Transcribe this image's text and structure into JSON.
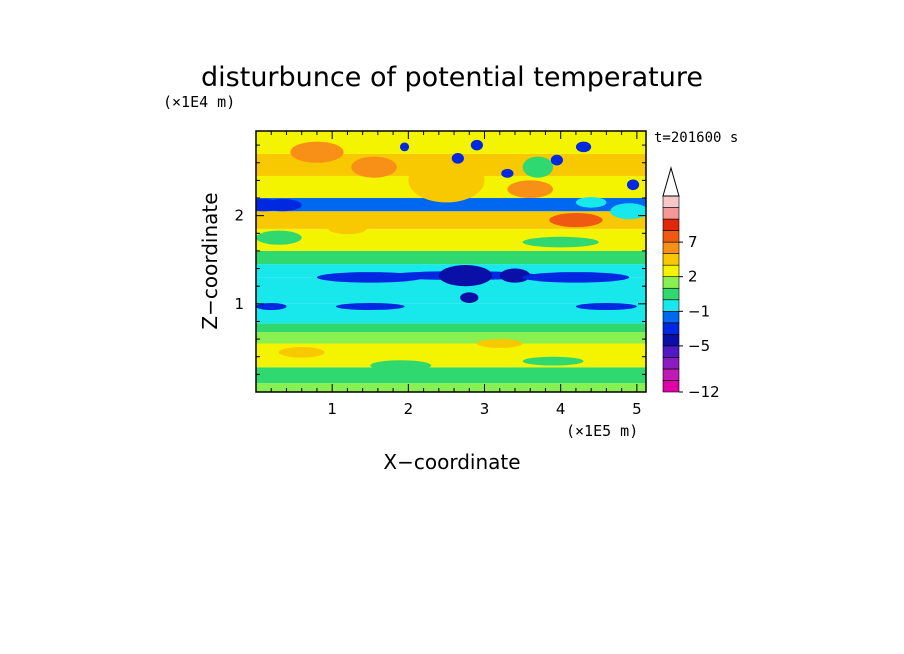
{
  "chart_data": {
    "type": "heatmap",
    "title": "disturbunce of potential temperature",
    "xlabel": "X−coordinate",
    "ylabel": "Z−coordinate",
    "x_unit": "(×1E5 m)",
    "y_unit": "(×1E4 m)",
    "time_label": "t=201600 s",
    "xlim": [
      0,
      5.12
    ],
    "ylim": [
      0,
      2.96
    ],
    "x_ticks": [
      "1",
      "2",
      "3",
      "4",
      "5"
    ],
    "y_ticks": [
      "1",
      "2"
    ],
    "grid": false,
    "legend": "right",
    "colorbar": {
      "tick_labels": [
        "−12",
        "−5",
        "−1",
        "2",
        "7"
      ],
      "tick_levels": [
        -12,
        -5,
        -1,
        2,
        7
      ],
      "levels": [
        -12,
        -10,
        -8,
        -6,
        -5,
        -4,
        -2,
        -1,
        0,
        1,
        2,
        4,
        6,
        7,
        8,
        10,
        12
      ],
      "colors": [
        "#e000a8",
        "#c01ab4",
        "#8d1cc0",
        "#5218c8",
        "#0a0fa8",
        "#0028e0",
        "#0068f0",
        "#18e8ec",
        "#30d870",
        "#88f050",
        "#f4f400",
        "#f8c800",
        "#f89018",
        "#f05a10",
        "#e02808",
        "#f49898",
        "#f8c8c8"
      ],
      "extend": "max"
    },
    "bands": [
      {
        "z": [
          0.0,
          0.1
        ],
        "level": 1
      },
      {
        "z": [
          0.1,
          0.28
        ],
        "level": 0
      },
      {
        "z": [
          0.28,
          0.55
        ],
        "level": 2
      },
      {
        "z": [
          0.55,
          0.68
        ],
        "level": 1
      },
      {
        "z": [
          0.68,
          0.78
        ],
        "level": 0
      },
      {
        "z": [
          0.78,
          1.0
        ],
        "level": -1
      },
      {
        "z": [
          1.0,
          1.3
        ],
        "level": -1
      },
      {
        "z": [
          1.3,
          1.45
        ],
        "level": -1
      },
      {
        "z": [
          1.45,
          1.6
        ],
        "level": 0
      },
      {
        "z": [
          1.6,
          1.85
        ],
        "level": 2
      },
      {
        "z": [
          1.85,
          2.05
        ],
        "level": 4
      },
      {
        "z": [
          2.05,
          2.2
        ],
        "level": -2
      },
      {
        "z": [
          2.2,
          2.45
        ],
        "level": 2
      },
      {
        "z": [
          2.45,
          2.7
        ],
        "level": 4
      },
      {
        "z": [
          2.7,
          2.96
        ],
        "level": 2
      }
    ],
    "features": [
      {
        "x": 0.1,
        "z": 2.12,
        "rx": 0.25,
        "rz": 0.07,
        "level": -4
      },
      {
        "x": 0.35,
        "z": 2.12,
        "rx": 0.25,
        "rz": 0.07,
        "level": -4
      },
      {
        "x": 2.7,
        "z": 1.32,
        "rx": 1.0,
        "rz": 0.05,
        "level": -4
      },
      {
        "x": 2.75,
        "z": 1.32,
        "rx": 0.35,
        "rz": 0.12,
        "level": -5
      },
      {
        "x": 1.5,
        "z": 1.3,
        "rx": 0.7,
        "rz": 0.06,
        "level": -4
      },
      {
        "x": 3.4,
        "z": 1.32,
        "rx": 0.2,
        "rz": 0.08,
        "level": -5
      },
      {
        "x": 4.2,
        "z": 1.3,
        "rx": 0.7,
        "rz": 0.06,
        "level": -4
      },
      {
        "x": 0.2,
        "z": 0.97,
        "rx": 0.2,
        "rz": 0.04,
        "level": -4
      },
      {
        "x": 1.5,
        "z": 0.97,
        "rx": 0.45,
        "rz": 0.04,
        "level": -4
      },
      {
        "x": 4.6,
        "z": 0.97,
        "rx": 0.4,
        "rz": 0.04,
        "level": -4
      },
      {
        "x": 2.8,
        "z": 1.07,
        "rx": 0.12,
        "rz": 0.06,
        "level": -5
      },
      {
        "x": 2.5,
        "z": 2.4,
        "rx": 0.5,
        "rz": 0.25,
        "level": 4
      },
      {
        "x": 0.8,
        "z": 2.72,
        "rx": 0.35,
        "rz": 0.12,
        "level": 6
      },
      {
        "x": 1.55,
        "z": 2.55,
        "rx": 0.3,
        "rz": 0.12,
        "level": 6
      },
      {
        "x": 4.2,
        "z": 1.95,
        "rx": 0.35,
        "rz": 0.08,
        "level": 7
      },
      {
        "x": 3.6,
        "z": 2.3,
        "rx": 0.3,
        "rz": 0.1,
        "level": 6
      },
      {
        "x": 4.4,
        "z": 2.15,
        "rx": 0.2,
        "rz": 0.06,
        "level": -1
      },
      {
        "x": 3.7,
        "z": 2.55,
        "rx": 0.2,
        "rz": 0.12,
        "level": 0
      },
      {
        "x": 4.9,
        "z": 2.05,
        "rx": 0.25,
        "rz": 0.09,
        "level": -1
      },
      {
        "x": 2.9,
        "z": 2.8,
        "rx": 0.08,
        "rz": 0.06,
        "level": -4
      },
      {
        "x": 2.65,
        "z": 2.65,
        "rx": 0.08,
        "rz": 0.06,
        "level": -4
      },
      {
        "x": 3.3,
        "z": 2.48,
        "rx": 0.08,
        "rz": 0.05,
        "level": -4
      },
      {
        "x": 4.3,
        "z": 2.78,
        "rx": 0.1,
        "rz": 0.06,
        "level": -4
      },
      {
        "x": 3.95,
        "z": 2.63,
        "rx": 0.08,
        "rz": 0.06,
        "level": -4
      },
      {
        "x": 1.95,
        "z": 2.78,
        "rx": 0.06,
        "rz": 0.05,
        "level": -4
      },
      {
        "x": 4.95,
        "z": 2.35,
        "rx": 0.08,
        "rz": 0.06,
        "level": -4
      },
      {
        "x": 1.9,
        "z": 0.3,
        "rx": 0.4,
        "rz": 0.06,
        "level": 0
      },
      {
        "x": 3.9,
        "z": 0.35,
        "rx": 0.4,
        "rz": 0.05,
        "level": 0
      },
      {
        "x": 0.6,
        "z": 0.45,
        "rx": 0.3,
        "rz": 0.06,
        "level": 4
      },
      {
        "x": 3.2,
        "z": 0.55,
        "rx": 0.3,
        "rz": 0.05,
        "level": 4
      },
      {
        "x": 0.3,
        "z": 1.75,
        "rx": 0.3,
        "rz": 0.08,
        "level": 0
      },
      {
        "x": 4.0,
        "z": 1.7,
        "rx": 0.5,
        "rz": 0.06,
        "level": 0
      },
      {
        "x": 1.2,
        "z": 1.85,
        "rx": 0.25,
        "rz": 0.06,
        "level": 4
      }
    ]
  }
}
